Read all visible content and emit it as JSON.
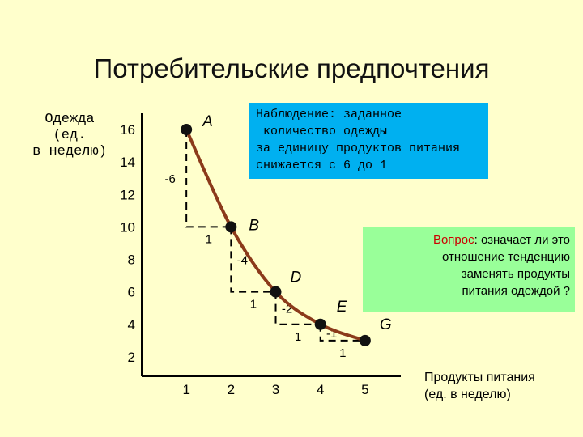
{
  "title": "Потребительские предпочтения",
  "chart_data": {
    "type": "line",
    "title": "Потребительские предпочтения",
    "ylabel": "Одежда\n(ед.\nв неделю)",
    "xlabel": "Продукты питания\n(ед. в неделю)",
    "xlim": [
      0,
      5.8
    ],
    "ylim": [
      0.8,
      17
    ],
    "x_ticks": [
      "1",
      "2",
      "3",
      "4",
      "5"
    ],
    "y_ticks": [
      "16",
      "14",
      "12",
      "10",
      "8",
      "6",
      "4",
      "2"
    ],
    "points": [
      {
        "label": "A",
        "x": 1,
        "y": 16
      },
      {
        "label": "B",
        "x": 2,
        "y": 10
      },
      {
        "label": "D",
        "x": 3,
        "y": 6
      },
      {
        "label": "E",
        "x": 4,
        "y": 4
      },
      {
        "label": "G",
        "x": 5,
        "y": 3
      }
    ],
    "steps": [
      {
        "dy": "-6",
        "dx": "1"
      },
      {
        "dy": "-4",
        "dx": "1"
      },
      {
        "dy": "-2",
        "dx": "1"
      },
      {
        "dy": "-1",
        "dx": "1"
      }
    ],
    "curve_color": "#8B3A1A"
  },
  "note": "Наблюдение: заданное\n количество одежды\nза единицу продуктов питания\nснижается с 6 до 1",
  "question": {
    "word": "Вопрос",
    "rest_first_line": ": означает ли это",
    "rest": "отношение тенденцию\nзаменять продукты\nпитания одеждой ?"
  },
  "colors": {
    "background": "#ffffcc",
    "note_bg": "#00b0f0",
    "question_bg": "#99ff99",
    "question_word": "#cc0000"
  }
}
